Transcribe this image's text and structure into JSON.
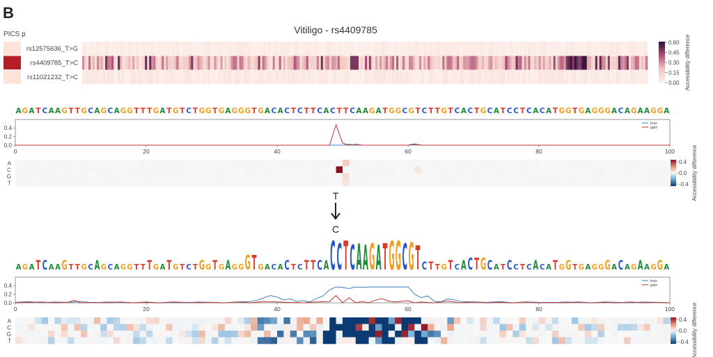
{
  "panel_letter": "B",
  "title": "Vitiligo - rs4409785",
  "pics_label": "PICS p",
  "colors": {
    "A": "#1e8a3a",
    "C": "#2a55c8",
    "G": "#f0a020",
    "T": "#d93a2a",
    "loss": "#3f7fc0",
    "gain": "#c03030"
  },
  "chart_data": [
    {
      "type": "heatmap",
      "name": "variant-heatmap",
      "rows": [
        "rs12575636_T>G",
        "rs4409785_T>C",
        "rs11021232_T>C"
      ],
      "pics_values": [
        0.05,
        1.0,
        0.08
      ],
      "colorbar": {
        "title": "Accessibility difference",
        "ticks": [
          "0.60",
          "0.45",
          "0.30",
          "0.15",
          "0.00"
        ],
        "range": [
          0,
          0.6
        ]
      }
    },
    {
      "type": "line",
      "name": "reference-accessibility",
      "sequence": "AGATCAAGTTGCAGCAGGTTTGATGTCTGGTGAGGGTGACACTCTTCACTTCAAGATGGCGTCTTGTCACTGCATCCTCACATGGTGAGGGACAGAAGGA",
      "legend": [
        "loss",
        "gain"
      ],
      "x_ticks": [
        "0",
        "20",
        "40",
        "60",
        "80",
        "100"
      ],
      "y_ticks": [
        "0.4",
        "0.2",
        "0.0"
      ],
      "xlim": [
        0,
        100
      ],
      "ylim": [
        0,
        0.5
      ],
      "gain_peaks": [
        {
          "x": 49,
          "y": 0.47
        },
        {
          "x": 50,
          "y": 0.05
        },
        {
          "x": 52,
          "y": 0.02
        },
        {
          "x": 61,
          "y": 0.03
        }
      ],
      "loss_peaks": [
        {
          "x": 51,
          "y": 0.02
        },
        {
          "x": 61,
          "y": 0.02
        }
      ]
    },
    {
      "type": "heatmap",
      "name": "reference-mutation-map",
      "rows": [
        "A",
        "C",
        "G",
        "T"
      ],
      "colorbar": {
        "title": "Accessibility difference",
        "ticks": [
          "0.4",
          "0.0",
          "-0.4"
        ],
        "range": [
          -0.4,
          0.4
        ]
      },
      "cells": [
        {
          "pos": 49,
          "base": 1,
          "v": 0.5
        },
        {
          "pos": 50,
          "base": 0,
          "v": 0.08
        },
        {
          "pos": 50,
          "base": 2,
          "v": 0.05
        },
        {
          "pos": 50,
          "base": 3,
          "v": 0.04
        },
        {
          "pos": 61,
          "base": 1,
          "v": 0.03
        }
      ]
    },
    {
      "type": "line",
      "name": "alternate-accessibility",
      "legend": [
        "loss",
        "gain"
      ],
      "x_ticks": [
        "0",
        "20",
        "40",
        "60",
        "80",
        "100"
      ],
      "y_ticks": [
        "0.4",
        "0.2",
        "0.0"
      ],
      "xlim": [
        0,
        100
      ],
      "ylim": [
        0,
        0.5
      ],
      "loss_line": [
        [
          0,
          0.01
        ],
        [
          2,
          0.03
        ],
        [
          4,
          0.0
        ],
        [
          6,
          0.02
        ],
        [
          8,
          0.01
        ],
        [
          10,
          0.03
        ],
        [
          12,
          0.0
        ],
        [
          14,
          0.02
        ],
        [
          16,
          0.01
        ],
        [
          18,
          0.0
        ],
        [
          20,
          0.02
        ],
        [
          22,
          0.0
        ],
        [
          24,
          0.01
        ],
        [
          26,
          0.0
        ],
        [
          28,
          0.02
        ],
        [
          30,
          0.01
        ],
        [
          32,
          0.0
        ],
        [
          34,
          0.02
        ],
        [
          36,
          0.03
        ],
        [
          37,
          0.06
        ],
        [
          38,
          0.12
        ],
        [
          39,
          0.17
        ],
        [
          40,
          0.13
        ],
        [
          41,
          0.07
        ],
        [
          42,
          0.09
        ],
        [
          43,
          0.03
        ],
        [
          44,
          0.05
        ],
        [
          45,
          0.02
        ],
        [
          46,
          0.1
        ],
        [
          47,
          0.16
        ],
        [
          48,
          0.3
        ],
        [
          49,
          0.37
        ],
        [
          50,
          0.36
        ],
        [
          51,
          0.33
        ],
        [
          52,
          0.37
        ],
        [
          53,
          0.36
        ],
        [
          54,
          0.37
        ],
        [
          55,
          0.37
        ],
        [
          56,
          0.37
        ],
        [
          57,
          0.37
        ],
        [
          58,
          0.37
        ],
        [
          59,
          0.37
        ],
        [
          60,
          0.37
        ],
        [
          61,
          0.2
        ],
        [
          62,
          0.12
        ],
        [
          63,
          0.16
        ],
        [
          64,
          0.04
        ],
        [
          65,
          0.02
        ],
        [
          66,
          0.09
        ],
        [
          67,
          0.07
        ],
        [
          68,
          0.03
        ],
        [
          70,
          0.02
        ],
        [
          72,
          0.01
        ],
        [
          74,
          0.03
        ],
        [
          76,
          0.0
        ],
        [
          78,
          0.02
        ],
        [
          80,
          0.01
        ],
        [
          82,
          0.0
        ],
        [
          84,
          0.02
        ],
        [
          86,
          0.01
        ],
        [
          88,
          0.0
        ],
        [
          90,
          0.02
        ],
        [
          92,
          0.01
        ],
        [
          94,
          0.0
        ],
        [
          96,
          0.02
        ],
        [
          98,
          0.01
        ],
        [
          100,
          0.0
        ]
      ],
      "gain_line": [
        [
          0,
          0.0
        ],
        [
          2,
          0.01
        ],
        [
          4,
          0.02
        ],
        [
          6,
          0.0
        ],
        [
          8,
          0.01
        ],
        [
          9,
          0.06
        ],
        [
          10,
          0.0
        ],
        [
          12,
          0.01
        ],
        [
          14,
          0.0
        ],
        [
          16,
          0.02
        ],
        [
          18,
          0.0
        ],
        [
          20,
          0.01
        ],
        [
          22,
          0.0
        ],
        [
          24,
          0.02
        ],
        [
          26,
          0.01
        ],
        [
          28,
          0.0
        ],
        [
          30,
          0.01
        ],
        [
          32,
          0.0
        ],
        [
          34,
          0.02
        ],
        [
          36,
          0.0
        ],
        [
          38,
          0.03
        ],
        [
          40,
          0.02
        ],
        [
          42,
          0.01
        ],
        [
          44,
          0.0
        ],
        [
          46,
          0.02
        ],
        [
          48,
          0.03
        ],
        [
          49,
          0.17
        ],
        [
          50,
          0.0
        ],
        [
          51,
          0.12
        ],
        [
          52,
          0.0
        ],
        [
          53,
          0.03
        ],
        [
          54,
          0.0
        ],
        [
          55,
          0.06
        ],
        [
          56,
          0.1
        ],
        [
          57,
          0.04
        ],
        [
          58,
          0.02
        ],
        [
          60,
          0.05
        ],
        [
          61,
          0.0
        ],
        [
          62,
          0.02
        ],
        [
          64,
          0.0
        ],
        [
          66,
          0.04
        ],
        [
          68,
          0.0
        ],
        [
          70,
          0.02
        ],
        [
          72,
          0.0
        ],
        [
          74,
          0.01
        ],
        [
          76,
          0.0
        ],
        [
          78,
          0.02
        ],
        [
          80,
          0.0
        ],
        [
          82,
          0.01
        ],
        [
          84,
          0.0
        ],
        [
          86,
          0.02
        ],
        [
          88,
          0.0
        ],
        [
          90,
          0.01
        ],
        [
          92,
          0.0
        ],
        [
          94,
          0.02
        ],
        [
          96,
          0.0
        ],
        [
          98,
          0.01
        ],
        [
          100,
          0.0
        ]
      ]
    },
    {
      "type": "heatmap",
      "name": "alternate-mutation-map",
      "rows": [
        "A",
        "C",
        "G",
        "T"
      ],
      "colorbar": {
        "title": "Accessibility difference",
        "ticks": [
          "0.4",
          "0.0",
          "-0.4"
        ],
        "range": [
          -0.4,
          0.4
        ]
      }
    }
  ],
  "mutation": {
    "ref": "T",
    "alt": "C"
  }
}
